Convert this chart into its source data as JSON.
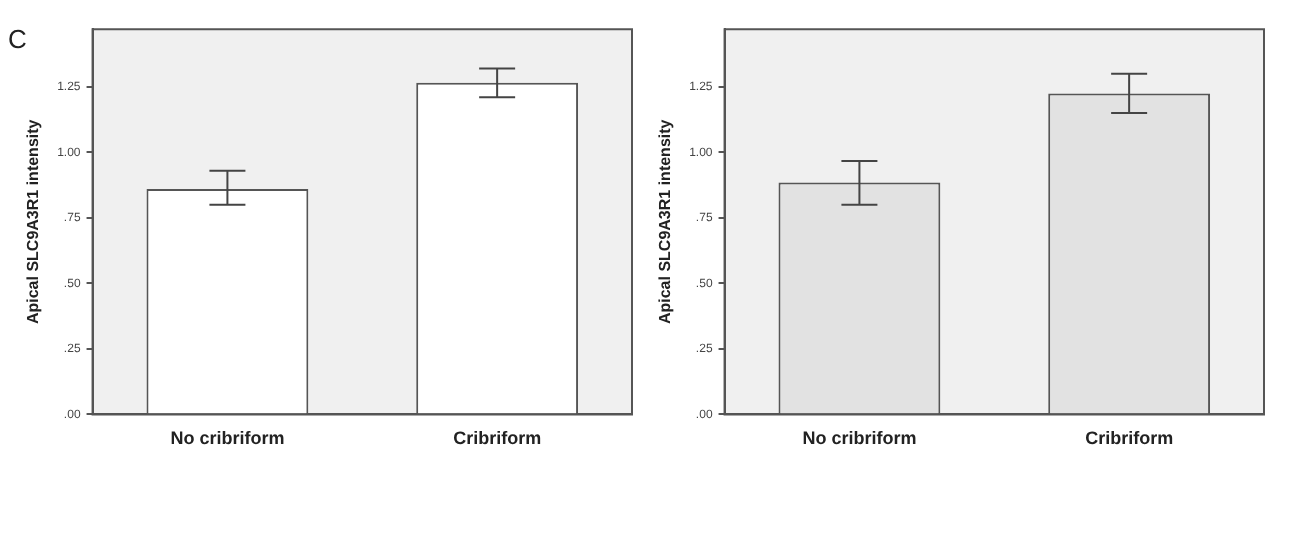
{
  "chart_data": [
    {
      "type": "bar",
      "annotations": [
        "C"
      ],
      "ylabel": "Apical SLC9A3R1 intensity",
      "categories": [
        "No cribriform",
        "Cribriform"
      ],
      "values": [
        0.86,
        1.266
      ],
      "errors": [
        [
          0.8,
          0.93
        ],
        [
          1.21,
          1.32
        ]
      ],
      "color": "#ffffff",
      "ylim": [
        0,
        1.47
      ],
      "yticks": [
        {
          "value": 0,
          "label": ".00"
        },
        {
          "value": 0.25,
          "label": ".25"
        },
        {
          "value": 0.5,
          "label": ".50"
        },
        {
          "value": 0.75,
          "label": ".75"
        },
        {
          "value": 1,
          "label": "1.00"
        },
        {
          "value": 1.25,
          "label": "1.25"
        }
      ],
      "grid": false,
      "legend": false
    },
    {
      "type": "bar",
      "ylabel": "Apical SLC9A3R1 intensity",
      "categories": [
        "No cribriform",
        "Cribriform"
      ],
      "values": [
        0.885,
        1.225
      ],
      "errors": [
        [
          0.8,
          0.967
        ],
        [
          1.15,
          1.3
        ]
      ],
      "color": "#e2e2e2",
      "ylim": [
        0,
        1.47
      ],
      "yticks": [
        {
          "value": 0,
          "label": ".00"
        },
        {
          "value": 0.25,
          "label": ".25"
        },
        {
          "value": 0.5,
          "label": ".50"
        },
        {
          "value": 0.75,
          "label": ".75"
        },
        {
          "value": 1,
          "label": "1.00"
        },
        {
          "value": 1.25,
          "label": "1.25"
        }
      ],
      "grid": false,
      "legend": false
    }
  ]
}
